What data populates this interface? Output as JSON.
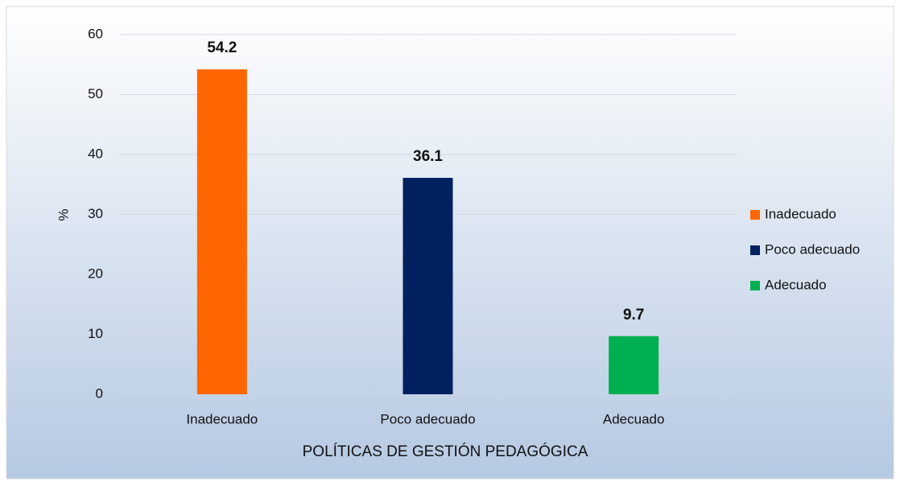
{
  "chart_data": {
    "type": "bar",
    "x_label": "POLÍTICAS DE GESTIÓN PEDAGÓGICA",
    "y_label": "%",
    "categories": [
      "Inadecuado",
      "Poco adecuado",
      "Adecuado"
    ],
    "values": [
      54.2,
      36.1,
      9.7
    ],
    "colors": [
      "#ff6600",
      "#002060",
      "#00b050"
    ],
    "ylim": [
      0,
      60
    ],
    "yticks": [
      0,
      10,
      20,
      30,
      40,
      50,
      60
    ],
    "grid": true,
    "legend": "right"
  }
}
